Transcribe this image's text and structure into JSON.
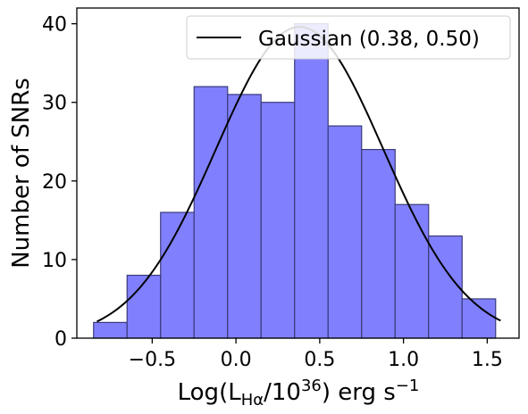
{
  "chart_data": {
    "type": "bar",
    "bins": [
      {
        "start": -0.85,
        "end": -0.65,
        "count": 2
      },
      {
        "start": -0.65,
        "end": -0.45,
        "count": 8
      },
      {
        "start": -0.45,
        "end": -0.25,
        "count": 16
      },
      {
        "start": -0.25,
        "end": -0.05,
        "count": 32
      },
      {
        "start": -0.05,
        "end": 0.15,
        "count": 31
      },
      {
        "start": 0.15,
        "end": 0.35,
        "count": 30
      },
      {
        "start": 0.35,
        "end": 0.55,
        "count": 40
      },
      {
        "start": 0.55,
        "end": 0.75,
        "count": 27
      },
      {
        "start": 0.75,
        "end": 0.95,
        "count": 24
      },
      {
        "start": 0.95,
        "end": 1.15,
        "count": 17
      },
      {
        "start": 1.15,
        "end": 1.35,
        "count": 13
      },
      {
        "start": 1.35,
        "end": 1.55,
        "count": 5
      }
    ],
    "gaussian": {
      "name": "Gaussian (0.38, 0.50)",
      "mean": 0.38,
      "sigma": 0.5,
      "peak": 39.6,
      "x_range": [
        -0.83,
        1.58
      ]
    },
    "xlabel": {
      "base": "Log(L",
      "sub": "Hα",
      "mid": "/10",
      "sup": "36",
      "tail": ") erg s",
      "unit_sup": "−1"
    },
    "ylabel": "Number of SNRs",
    "xlim": [
      -0.95,
      1.69
    ],
    "ylim": [
      0,
      42
    ],
    "xticks": [
      {
        "value": -0.5,
        "label": "−0.5"
      },
      {
        "value": 0.0,
        "label": "0.0"
      },
      {
        "value": 0.5,
        "label": "0.5"
      },
      {
        "value": 1.0,
        "label": "1.0"
      },
      {
        "value": 1.5,
        "label": "1.5"
      }
    ],
    "yticks": [
      {
        "value": 0,
        "label": "0"
      },
      {
        "value": 10,
        "label": "10"
      },
      {
        "value": 20,
        "label": "20"
      },
      {
        "value": 30,
        "label": "30"
      },
      {
        "value": 40,
        "label": "40"
      }
    ],
    "legend_position": "top-right",
    "colors": {
      "bar_fill": "#8080ff",
      "bar_edge": "#3a3a7a",
      "curve": "#000000"
    }
  }
}
